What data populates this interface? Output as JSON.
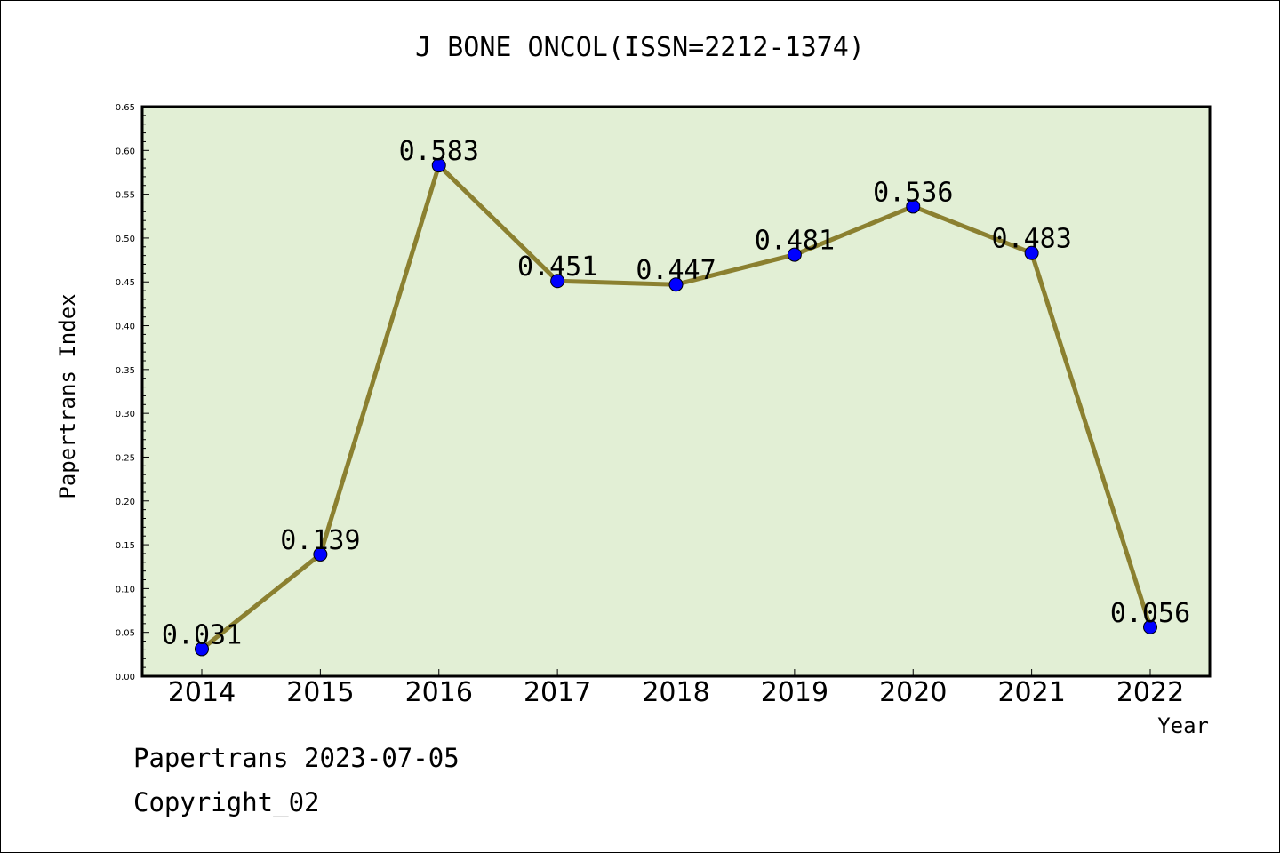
{
  "title": "J BONE ONCOL(ISSN=2212-1374)",
  "footer": {
    "line1": "Papertrans 2023-07-05",
    "line2": "Copyright_02"
  },
  "colors": {
    "plot_background": "#e2efd5",
    "line": "#8b8030",
    "marker": "#0000ff"
  },
  "chart_data": {
    "type": "line",
    "title": "J BONE ONCOL(ISSN=2212-1374)",
    "xlabel": "Year",
    "ylabel": "Papertrans Index",
    "categories": [
      "2014",
      "2015",
      "2016",
      "2017",
      "2018",
      "2019",
      "2020",
      "2021",
      "2022"
    ],
    "values": [
      0.031,
      0.139,
      0.583,
      0.451,
      0.447,
      0.481,
      0.536,
      0.483,
      0.056
    ],
    "data_labels": [
      "0.031",
      "0.139",
      "0.583",
      "0.451",
      "0.447",
      "0.481",
      "0.536",
      "0.483",
      "0.056"
    ],
    "ylim": [
      0,
      0.65
    ],
    "yticks": [
      "0.00",
      "0.05",
      "0.10",
      "0.15",
      "0.20",
      "0.25",
      "0.30",
      "0.35",
      "0.40",
      "0.45",
      "0.50",
      "0.55",
      "0.60",
      "0.65"
    ],
    "grid": false,
    "legend": "none"
  }
}
